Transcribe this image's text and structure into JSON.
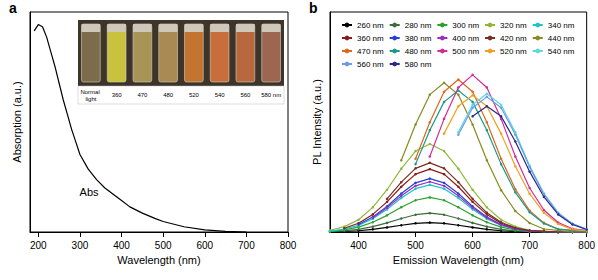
{
  "chart_data": [
    {
      "type": "line",
      "title": "a",
      "x_label": "Wavelength (nm)",
      "y_label": "Absorption (a.u.)",
      "xlim": [
        180,
        800
      ],
      "xticks": [
        200,
        300,
        400,
        500,
        600,
        700,
        800
      ],
      "ylim": [
        0,
        1.05
      ],
      "tick_labels": "x",
      "grid": false,
      "color": "#000000",
      "x": [
        190,
        200,
        210,
        220,
        230,
        240,
        250,
        260,
        270,
        280,
        290,
        300,
        320,
        340,
        360,
        380,
        400,
        420,
        450,
        480,
        500,
        550,
        600,
        650,
        700
      ],
      "values": [
        0.96,
        0.99,
        0.98,
        0.93,
        0.86,
        0.79,
        0.71,
        0.63,
        0.56,
        0.49,
        0.43,
        0.37,
        0.3,
        0.25,
        0.21,
        0.18,
        0.15,
        0.12,
        0.09,
        0.065,
        0.05,
        0.025,
        0.01,
        0.003,
        0.0
      ],
      "annotations": [
        {
          "text": "Abs",
          "x": 322,
          "y": 0.19
        }
      ],
      "inset": {
        "labels": [
          "Normal light",
          "360",
          "470",
          "480",
          "520",
          "540",
          "560",
          "580 nm"
        ],
        "colors": [
          "#7d6c4c",
          "#c9c23c",
          "#a89456",
          "#a88a52",
          "#c4742f",
          "#c86e3a",
          "#b8683e",
          "#9c6650"
        ]
      }
    },
    {
      "type": "line",
      "title": "b",
      "x_label": "Emission Wavelength (nm)",
      "y_label": "PL Intensity (a.u.)",
      "xlim": [
        350,
        800
      ],
      "xticks": [
        400,
        500,
        600,
        700,
        800
      ],
      "ylim": [
        0,
        1.4
      ],
      "tick_labels": "x",
      "grid": false,
      "legend": "top",
      "marker": "circle",
      "x": [
        350,
        375,
        400,
        425,
        450,
        475,
        500,
        525,
        550,
        575,
        600,
        625,
        650,
        675,
        700,
        725,
        750,
        775,
        800
      ],
      "series": [
        {
          "name": "260 nm",
          "color": "#000000",
          "values": [
            0.001,
            0.004,
            0.008,
            0.017,
            0.029,
            0.043,
            0.055,
            0.06,
            0.055,
            0.043,
            0.029,
            0.017,
            0.008,
            0.004,
            0.001,
            0.001,
            0,
            0,
            0
          ]
        },
        {
          "name": "280 nm",
          "color": "#3c6e3c",
          "values": [
            0.002,
            0.007,
            0.017,
            0.034,
            0.058,
            0.086,
            0.11,
            0.12,
            0.11,
            0.086,
            0.058,
            0.034,
            0.017,
            0.007,
            0.002,
            0.001,
            0,
            0,
            0
          ]
        },
        {
          "name": "300 nm",
          "color": "#2ca02c",
          "values": [
            0.004,
            0.013,
            0.031,
            0.062,
            0.106,
            0.158,
            0.202,
            0.22,
            0.202,
            0.158,
            0.106,
            0.062,
            0.031,
            0.013,
            0.004,
            0.002,
            0,
            0,
            0
          ]
        },
        {
          "name": "320 nm",
          "color": "#8fb83a",
          "values": [
            0.011,
            0.034,
            0.078,
            0.157,
            0.269,
            0.403,
            0.515,
            0.56,
            0.515,
            0.403,
            0.269,
            0.157,
            0.078,
            0.034,
            0.011,
            0.006,
            0,
            0,
            0
          ]
        },
        {
          "name": "340 nm",
          "color": "#19c7c7",
          "values": [
            0.006,
            0.018,
            0.042,
            0.084,
            0.144,
            0.216,
            0.276,
            0.3,
            0.276,
            0.216,
            0.144,
            0.084,
            0.042,
            0.018,
            0.006,
            0.003,
            0,
            0,
            0
          ]
        },
        {
          "name": "360 nm",
          "color": "#8b1a1a",
          "values": [
            null,
            0.024,
            0.056,
            0.112,
            0.192,
            0.288,
            0.368,
            0.4,
            0.368,
            0.288,
            0.192,
            0.112,
            0.056,
            0.024,
            0.008,
            0.004,
            0,
            0,
            0
          ]
        },
        {
          "name": "380 nm",
          "color": "#2a3fd6",
          "values": [
            null,
            null,
            0.048,
            0.095,
            0.163,
            0.245,
            0.313,
            0.34,
            0.313,
            0.245,
            0.163,
            0.095,
            0.048,
            0.02,
            0.007,
            0.003,
            0,
            0,
            0
          ]
        },
        {
          "name": "400 nm",
          "color": "#9a2fc0",
          "values": [
            null,
            null,
            null,
            0.09,
            0.154,
            0.23,
            0.294,
            0.32,
            0.294,
            0.23,
            0.154,
            0.09,
            0.045,
            0.019,
            0.006,
            0.003,
            0,
            0,
            0
          ]
        },
        {
          "name": "420 nm",
          "color": "#7a2e1e",
          "values": [
            null,
            null,
            null,
            null,
            0.211,
            0.317,
            0.405,
            0.44,
            0.405,
            0.317,
            0.211,
            0.123,
            0.062,
            0.026,
            0.009,
            0.004,
            0,
            0,
            0
          ]
        },
        {
          "name": "440 nm",
          "color": "#8a8a1e",
          "values": [
            null,
            null,
            null,
            null,
            null,
            0.456,
            0.684,
            0.874,
            0.95,
            0.874,
            0.684,
            0.456,
            0.266,
            0.133,
            0.057,
            0.019,
            0.01,
            0,
            0
          ]
        },
        {
          "name": "470 nm",
          "color": "#e0661a",
          "values": [
            null,
            null,
            null,
            null,
            null,
            null,
            0.466,
            0.698,
            0.892,
            0.97,
            0.892,
            0.698,
            0.466,
            0.272,
            0.136,
            0.058,
            0.019,
            0.01,
            0
          ]
        },
        {
          "name": "480 nm",
          "color": "#1a9a8a",
          "values": [
            null,
            null,
            null,
            null,
            null,
            null,
            0.432,
            0.648,
            0.828,
            0.9,
            0.828,
            0.648,
            0.432,
            0.252,
            0.126,
            0.054,
            0.018,
            0.009,
            0
          ]
        },
        {
          "name": "500 nm",
          "color": "#d42a9a",
          "values": [
            null,
            null,
            null,
            null,
            null,
            null,
            null,
            0.48,
            0.72,
            0.92,
            1.0,
            0.92,
            0.72,
            0.48,
            0.28,
            0.14,
            0.06,
            0.02,
            0.01
          ]
        },
        {
          "name": "520 nm",
          "color": "#f0a020",
          "values": [
            null,
            null,
            null,
            null,
            null,
            null,
            null,
            null,
            0.626,
            0.8,
            0.87,
            0.8,
            0.626,
            0.418,
            0.244,
            0.122,
            0.052,
            0.017,
            0.009
          ]
        },
        {
          "name": "540 nm",
          "color": "#5ad8e0",
          "values": [
            null,
            null,
            null,
            null,
            null,
            null,
            null,
            null,
            null,
            0.634,
            0.81,
            0.88,
            0.81,
            0.634,
            0.422,
            0.246,
            0.123,
            0.053,
            0.018
          ]
        },
        {
          "name": "560 nm",
          "color": "#6a9ae8",
          "values": [
            null,
            null,
            null,
            null,
            null,
            null,
            null,
            null,
            null,
            0.619,
            0.791,
            0.86,
            0.791,
            0.619,
            0.413,
            0.241,
            0.12,
            0.052,
            0.017
          ]
        },
        {
          "name": "580 nm",
          "color": "#2a2a8a",
          "values": [
            null,
            null,
            null,
            null,
            null,
            null,
            null,
            null,
            null,
            null,
            0.736,
            0.8,
            0.736,
            0.576,
            0.384,
            0.224,
            0.112,
            0.048,
            0.016
          ]
        }
      ]
    }
  ]
}
